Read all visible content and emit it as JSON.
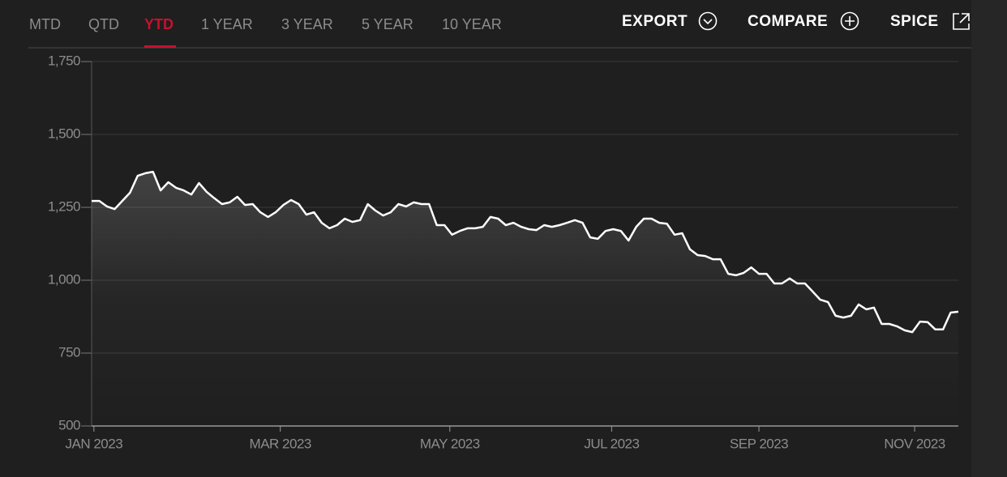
{
  "tabs": [
    "MTD",
    "QTD",
    "YTD",
    "1 YEAR",
    "3 YEAR",
    "5 YEAR",
    "10 YEAR"
  ],
  "actions": [
    "EXPORT",
    "COMPARE",
    "SPICE"
  ],
  "chart_data": {
    "type": "line",
    "color": "#ffffff",
    "grid": true,
    "values": [
      1272,
      1272,
      1253,
      1244,
      1272,
      1300,
      1358,
      1367,
      1372,
      1308,
      1336,
      1317,
      1308,
      1294,
      1333,
      1303,
      1281,
      1261,
      1267,
      1286,
      1258,
      1261,
      1233,
      1217,
      1233,
      1258,
      1275,
      1261,
      1225,
      1233,
      1197,
      1178,
      1189,
      1211,
      1200,
      1206,
      1261,
      1239,
      1222,
      1233,
      1261,
      1253,
      1267,
      1261,
      1261,
      1189,
      1189,
      1156,
      1169,
      1178,
      1178,
      1183,
      1217,
      1211,
      1189,
      1197,
      1183,
      1175,
      1172,
      1189,
      1183,
      1189,
      1197,
      1206,
      1197,
      1147,
      1142,
      1169,
      1175,
      1169,
      1136,
      1183,
      1211,
      1211,
      1197,
      1194,
      1156,
      1161,
      1106,
      1086,
      1083,
      1072,
      1072,
      1022,
      1017,
      1025,
      1044,
      1022,
      1022,
      989,
      989,
      1006,
      989,
      989,
      961,
      933,
      925,
      878,
      872,
      878,
      917,
      900,
      906,
      850,
      850,
      842,
      828,
      822,
      858,
      856,
      831,
      831,
      889,
      892
    ],
    "xlim": [
      0,
      113
    ],
    "xticks": [
      {
        "value": 0.3,
        "label": "JAN 2023"
      },
      {
        "value": 24.6,
        "label": "MAR 2023"
      },
      {
        "value": 46.7,
        "label": "MAY 2023"
      },
      {
        "value": 67.8,
        "label": "JUL 2023"
      },
      {
        "value": 87,
        "label": "SEP 2023"
      },
      {
        "value": 107.3,
        "label": "NOV 2023"
      }
    ],
    "ylim": [
      500,
      1750
    ],
    "yticks": [
      500,
      750,
      {
        "value": 1000,
        "label": "1,000"
      },
      {
        "value": 1250,
        "label": "1,250"
      },
      {
        "value": 1500,
        "label": "1,500"
      },
      {
        "value": 1750,
        "label": "1,750"
      }
    ]
  }
}
